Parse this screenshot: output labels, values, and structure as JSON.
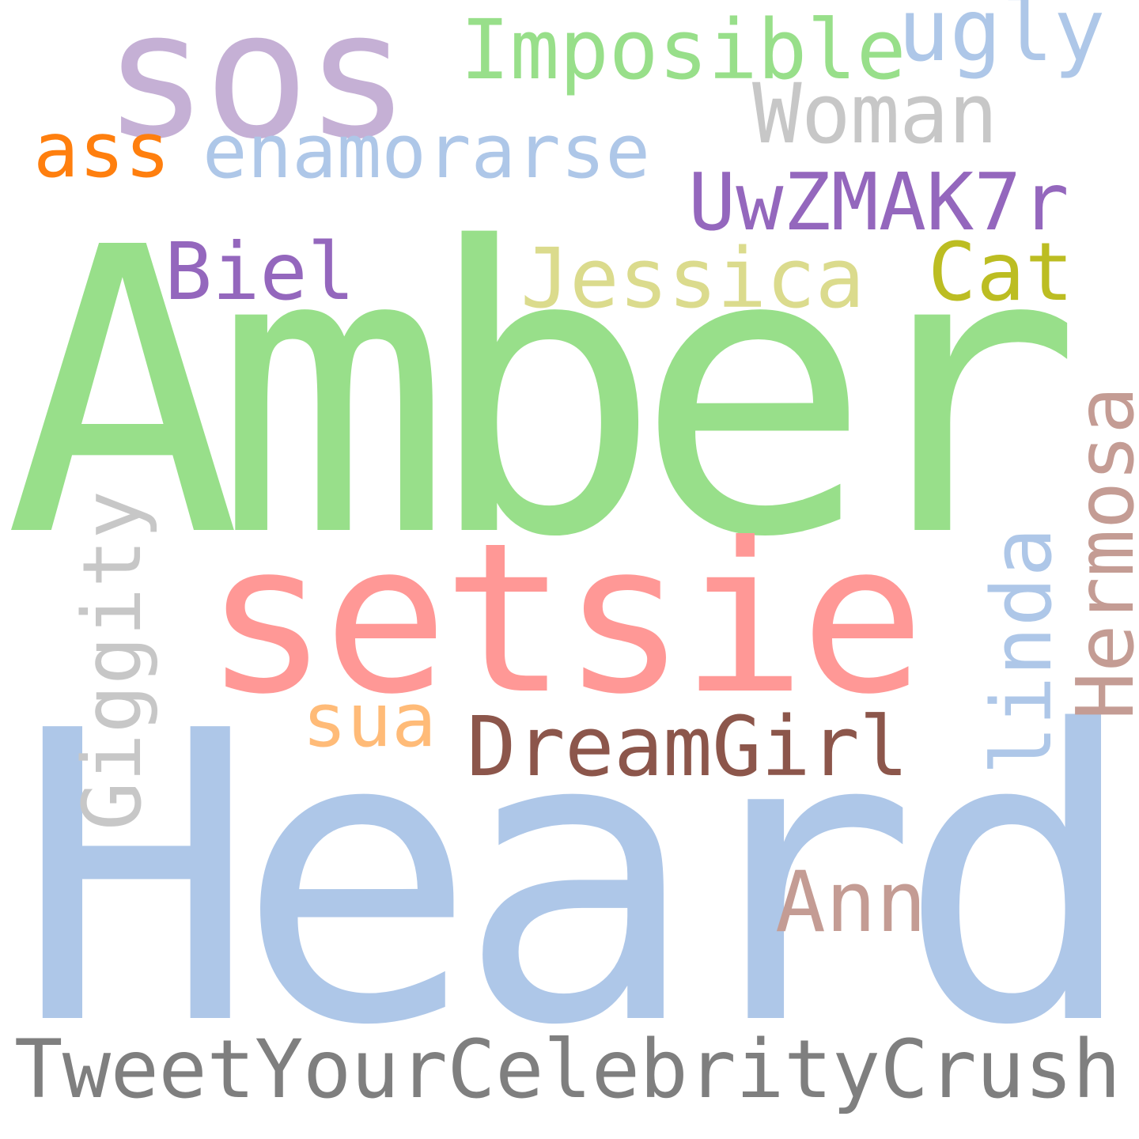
{
  "background": "#ffffff",
  "words": [
    {
      "text": "Amber",
      "color": "#98df8a"
    },
    {
      "text": "Heard",
      "color": "#aec7e8"
    },
    {
      "text": "setsie",
      "color": "#ff9896"
    },
    {
      "text": "sos",
      "color": "#c5b0d5"
    },
    {
      "text": "TweetYourCelebrityCrush",
      "color": "#7f7f7f"
    },
    {
      "text": "Imposible",
      "color": "#98df8a"
    },
    {
      "text": "ugly",
      "color": "#aec7e8"
    },
    {
      "text": "Woman",
      "color": "#c7c7c7"
    },
    {
      "text": "enamorarse",
      "color": "#aec7e8"
    },
    {
      "text": "ass",
      "color": "#ff7f0e"
    },
    {
      "text": "UwZMAK7r",
      "color": "#9467bd"
    },
    {
      "text": "Biel",
      "color": "#9467bd"
    },
    {
      "text": "Jessica",
      "color": "#dbdb8d"
    },
    {
      "text": "Cat",
      "color": "#bcbd22"
    },
    {
      "text": "Hermosa",
      "color": "#c49c94"
    },
    {
      "text": "linda",
      "color": "#aec7e8"
    },
    {
      "text": "Giggity",
      "color": "#c7c7c7"
    },
    {
      "text": "sua",
      "color": "#ffbb78"
    },
    {
      "text": "DreamGirl",
      "color": "#8c564b"
    },
    {
      "text": "Ann",
      "color": "#c49c94"
    }
  ]
}
